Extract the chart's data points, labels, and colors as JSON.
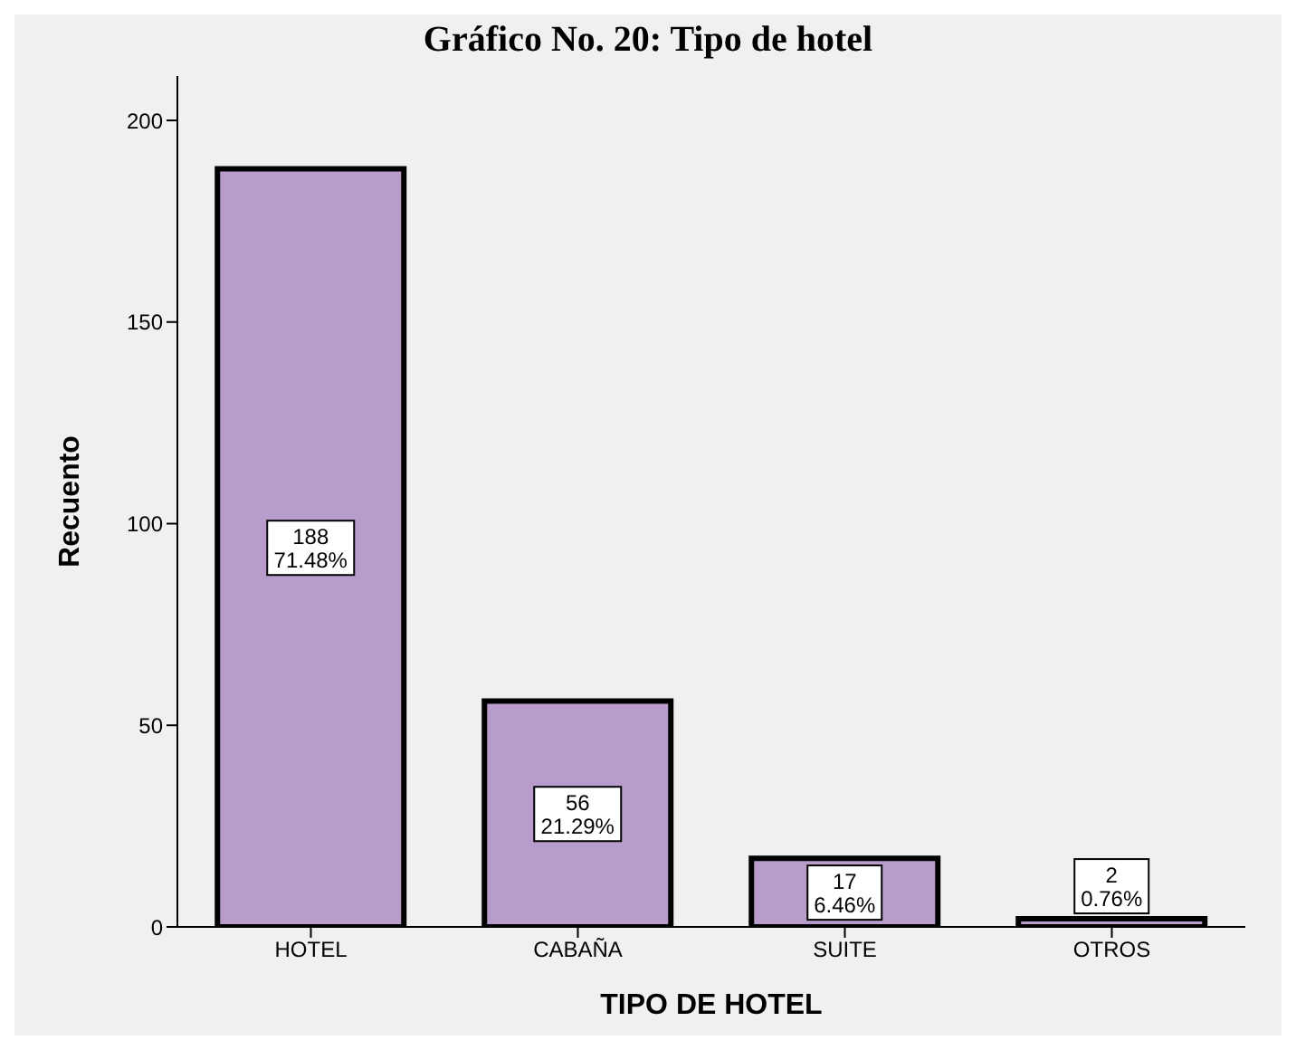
{
  "chart_data": {
    "type": "bar",
    "title": "Gráfico No. 20: Tipo de hotel",
    "xlabel": "TIPO DE HOTEL",
    "ylabel": "Recuento",
    "categories": [
      "HOTEL",
      "CABAÑA",
      "SUITE",
      "OTROS"
    ],
    "values": [
      188,
      56,
      17,
      2
    ],
    "value_labels": [
      "188\n71.48%",
      "56\n21.29%",
      "17\n6.46%",
      "2\n0.76%"
    ],
    "color": "#b89dcc",
    "ylim": [
      0,
      211
    ],
    "yticks": [
      0,
      50,
      100,
      150,
      200
    ],
    "grid": false,
    "legend": false
  }
}
